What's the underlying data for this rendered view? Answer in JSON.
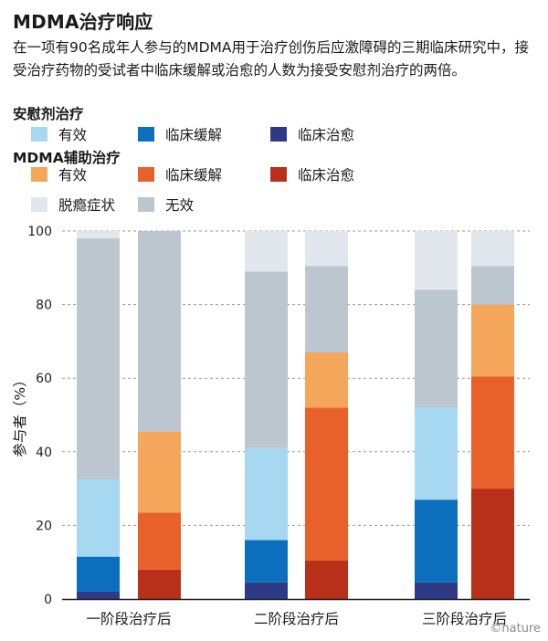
{
  "title": "MDMA治疗响应",
  "subtitle": "在一项有90名成年人参与的MDMA用于治疗创伤后应激障碍的三期临床研究中，接受治疗药物的受试者中临床缓解或治愈的人数为接受安慰剂治疗的两倍。",
  "legend": {
    "placebo_title": "安慰剂治疗",
    "mdma_title": "MDMA辅助治疗",
    "placebo_items": [
      {
        "label": "有效",
        "color": "#a6d8f2"
      },
      {
        "label": "临床缓解",
        "color": "#0c6fbd"
      },
      {
        "label": "临床治愈",
        "color": "#2e3a86"
      }
    ],
    "mdma_items": [
      {
        "label": "有效",
        "color": "#f4a75a"
      },
      {
        "label": "临床缓解",
        "color": "#e8602a"
      },
      {
        "label": "临床治愈",
        "color": "#b8301a"
      }
    ],
    "common_items": [
      {
        "label": "脱瘾症状",
        "color": "#e2e7ee"
      },
      {
        "label": "无效",
        "color": "#bcc6cf"
      }
    ]
  },
  "credit": "©nature",
  "chart_data": {
    "type": "bar",
    "stacked": true,
    "ylabel": "参与者（%）",
    "ylim": [
      0,
      100
    ],
    "yticks": [
      0,
      20,
      40,
      60,
      80,
      100
    ],
    "categories": [
      "一阶段治疗后",
      "二阶段治疗后",
      "三阶段治疗后"
    ],
    "groups": [
      {
        "category": "一阶段治疗后",
        "bars": [
          {
            "arm": "安慰剂治疗",
            "segments": [
              {
                "name": "临床治愈",
                "value": 2,
                "color": "#2e3a86"
              },
              {
                "name": "临床缓解",
                "value": 9.5,
                "color": "#0c6fbd"
              },
              {
                "name": "有效",
                "value": 21,
                "color": "#a6d8f2"
              },
              {
                "name": "无效",
                "value": 65.5,
                "color": "#bcc6cf"
              },
              {
                "name": "脱瘾症状",
                "value": 2,
                "color": "#e2e7ee"
              }
            ]
          },
          {
            "arm": "MDMA辅助治疗",
            "segments": [
              {
                "name": "临床治愈",
                "value": 8,
                "color": "#b8301a"
              },
              {
                "name": "临床缓解",
                "value": 15.5,
                "color": "#e8602a"
              },
              {
                "name": "有效",
                "value": 22,
                "color": "#f4a75a"
              },
              {
                "name": "无效",
                "value": 54.5,
                "color": "#bcc6cf"
              },
              {
                "name": "脱瘾症状",
                "value": 0,
                "color": "#e2e7ee"
              }
            ]
          }
        ]
      },
      {
        "category": "二阶段治疗后",
        "bars": [
          {
            "arm": "安慰剂治疗",
            "segments": [
              {
                "name": "临床治愈",
                "value": 4.5,
                "color": "#2e3a86"
              },
              {
                "name": "临床缓解",
                "value": 11.5,
                "color": "#0c6fbd"
              },
              {
                "name": "有效",
                "value": 25,
                "color": "#a6d8f2"
              },
              {
                "name": "无效",
                "value": 48,
                "color": "#bcc6cf"
              },
              {
                "name": "脱瘾症状",
                "value": 11,
                "color": "#e2e7ee"
              }
            ]
          },
          {
            "arm": "MDMA辅助治疗",
            "segments": [
              {
                "name": "临床治愈",
                "value": 10.5,
                "color": "#b8301a"
              },
              {
                "name": "临床缓解",
                "value": 41.5,
                "color": "#e8602a"
              },
              {
                "name": "有效",
                "value": 15,
                "color": "#f4a75a"
              },
              {
                "name": "无效",
                "value": 23.5,
                "color": "#bcc6cf"
              },
              {
                "name": "脱瘾症状",
                "value": 9.5,
                "color": "#e2e7ee"
              }
            ]
          }
        ]
      },
      {
        "category": "三阶段治疗后",
        "bars": [
          {
            "arm": "安慰剂治疗",
            "segments": [
              {
                "name": "临床治愈",
                "value": 4.5,
                "color": "#2e3a86"
              },
              {
                "name": "临床缓解",
                "value": 22.5,
                "color": "#0c6fbd"
              },
              {
                "name": "有效",
                "value": 25,
                "color": "#a6d8f2"
              },
              {
                "name": "无效",
                "value": 32,
                "color": "#bcc6cf"
              },
              {
                "name": "脱瘾症状",
                "value": 16,
                "color": "#e2e7ee"
              }
            ]
          },
          {
            "arm": "MDMA辅助治疗",
            "segments": [
              {
                "name": "临床治愈",
                "value": 30,
                "color": "#b8301a"
              },
              {
                "name": "临床缓解",
                "value": 30.5,
                "color": "#e8602a"
              },
              {
                "name": "有效",
                "value": 19.5,
                "color": "#f4a75a"
              },
              {
                "name": "无效",
                "value": 10.5,
                "color": "#bcc6cf"
              },
              {
                "name": "脱瘾症状",
                "value": 9.5,
                "color": "#e2e7ee"
              }
            ]
          }
        ]
      }
    ]
  }
}
